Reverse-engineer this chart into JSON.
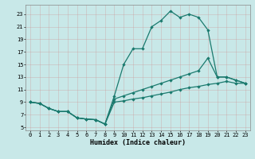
{
  "xlabel": "Humidex (Indice chaleur)",
  "bg_color": "#c8e8e8",
  "grid_color": "#b0c8c8",
  "line_color": "#1a7a6e",
  "xlim": [
    -0.5,
    23.5
  ],
  "ylim": [
    4.5,
    24.5
  ],
  "xticks": [
    0,
    1,
    2,
    3,
    4,
    5,
    6,
    7,
    8,
    9,
    10,
    11,
    12,
    13,
    14,
    15,
    16,
    17,
    18,
    19,
    20,
    21,
    22,
    23
  ],
  "yticks": [
    5,
    7,
    9,
    11,
    13,
    15,
    17,
    19,
    21,
    23
  ],
  "curve1_x": [
    0,
    1,
    2,
    3,
    4,
    5,
    6,
    7,
    8,
    9,
    10,
    11,
    12,
    13,
    14,
    15,
    16,
    17,
    18,
    19,
    20,
    21,
    22,
    23
  ],
  "curve1_y": [
    9,
    8.8,
    8.0,
    7.5,
    7.5,
    6.5,
    6.3,
    6.2,
    5.5,
    10.0,
    15.0,
    17.5,
    17.5,
    21.0,
    22.0,
    23.5,
    22.5,
    23.0,
    22.5,
    20.5,
    13.0,
    13.0,
    12.5,
    12.0
  ],
  "curve2_x": [
    0,
    1,
    2,
    3,
    4,
    5,
    6,
    7,
    8,
    9,
    10,
    11,
    12,
    13,
    14,
    15,
    16,
    17,
    18,
    19,
    20,
    21,
    22,
    23
  ],
  "curve2_y": [
    9,
    8.8,
    8.0,
    7.5,
    7.5,
    6.5,
    6.3,
    6.2,
    5.5,
    9.5,
    10.0,
    10.5,
    11.0,
    11.5,
    12.0,
    12.5,
    13.0,
    13.5,
    14.0,
    16.0,
    13.0,
    13.0,
    12.5,
    12.0
  ],
  "curve3_x": [
    0,
    1,
    2,
    3,
    4,
    5,
    6,
    7,
    8,
    9,
    10,
    11,
    12,
    13,
    14,
    15,
    16,
    17,
    18,
    19,
    20,
    21,
    22,
    23
  ],
  "curve3_y": [
    9,
    8.8,
    8.0,
    7.5,
    7.5,
    6.5,
    6.3,
    6.2,
    5.5,
    9.0,
    9.2,
    9.5,
    9.7,
    10.0,
    10.3,
    10.6,
    11.0,
    11.3,
    11.5,
    11.8,
    12.0,
    12.3,
    12.0,
    12.0
  ]
}
